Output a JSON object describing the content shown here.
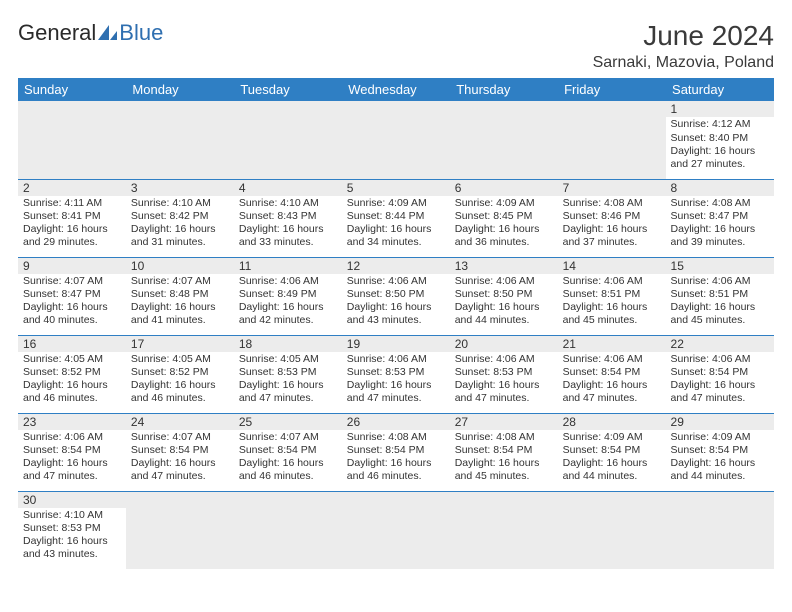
{
  "logo": {
    "text1": "General",
    "text2": "Blue"
  },
  "header": {
    "title": "June 2024",
    "location": "Sarnaki, Mazovia, Poland"
  },
  "colors": {
    "header_bg": "#2f7fc4",
    "header_text": "#ffffff",
    "daynum_bg": "#ececec",
    "border": "#2f7fc4",
    "logo_blue": "#2f6fb0",
    "text": "#333333"
  },
  "weekdays": [
    "Sunday",
    "Monday",
    "Tuesday",
    "Wednesday",
    "Thursday",
    "Friday",
    "Saturday"
  ],
  "weeks": [
    [
      null,
      null,
      null,
      null,
      null,
      null,
      {
        "n": "1",
        "sr": "Sunrise: 4:12 AM",
        "ss": "Sunset: 8:40 PM",
        "dl": "Daylight: 16 hours and 27 minutes."
      }
    ],
    [
      {
        "n": "2",
        "sr": "Sunrise: 4:11 AM",
        "ss": "Sunset: 8:41 PM",
        "dl": "Daylight: 16 hours and 29 minutes."
      },
      {
        "n": "3",
        "sr": "Sunrise: 4:10 AM",
        "ss": "Sunset: 8:42 PM",
        "dl": "Daylight: 16 hours and 31 minutes."
      },
      {
        "n": "4",
        "sr": "Sunrise: 4:10 AM",
        "ss": "Sunset: 8:43 PM",
        "dl": "Daylight: 16 hours and 33 minutes."
      },
      {
        "n": "5",
        "sr": "Sunrise: 4:09 AM",
        "ss": "Sunset: 8:44 PM",
        "dl": "Daylight: 16 hours and 34 minutes."
      },
      {
        "n": "6",
        "sr": "Sunrise: 4:09 AM",
        "ss": "Sunset: 8:45 PM",
        "dl": "Daylight: 16 hours and 36 minutes."
      },
      {
        "n": "7",
        "sr": "Sunrise: 4:08 AM",
        "ss": "Sunset: 8:46 PM",
        "dl": "Daylight: 16 hours and 37 minutes."
      },
      {
        "n": "8",
        "sr": "Sunrise: 4:08 AM",
        "ss": "Sunset: 8:47 PM",
        "dl": "Daylight: 16 hours and 39 minutes."
      }
    ],
    [
      {
        "n": "9",
        "sr": "Sunrise: 4:07 AM",
        "ss": "Sunset: 8:47 PM",
        "dl": "Daylight: 16 hours and 40 minutes."
      },
      {
        "n": "10",
        "sr": "Sunrise: 4:07 AM",
        "ss": "Sunset: 8:48 PM",
        "dl": "Daylight: 16 hours and 41 minutes."
      },
      {
        "n": "11",
        "sr": "Sunrise: 4:06 AM",
        "ss": "Sunset: 8:49 PM",
        "dl": "Daylight: 16 hours and 42 minutes."
      },
      {
        "n": "12",
        "sr": "Sunrise: 4:06 AM",
        "ss": "Sunset: 8:50 PM",
        "dl": "Daylight: 16 hours and 43 minutes."
      },
      {
        "n": "13",
        "sr": "Sunrise: 4:06 AM",
        "ss": "Sunset: 8:50 PM",
        "dl": "Daylight: 16 hours and 44 minutes."
      },
      {
        "n": "14",
        "sr": "Sunrise: 4:06 AM",
        "ss": "Sunset: 8:51 PM",
        "dl": "Daylight: 16 hours and 45 minutes."
      },
      {
        "n": "15",
        "sr": "Sunrise: 4:06 AM",
        "ss": "Sunset: 8:51 PM",
        "dl": "Daylight: 16 hours and 45 minutes."
      }
    ],
    [
      {
        "n": "16",
        "sr": "Sunrise: 4:05 AM",
        "ss": "Sunset: 8:52 PM",
        "dl": "Daylight: 16 hours and 46 minutes."
      },
      {
        "n": "17",
        "sr": "Sunrise: 4:05 AM",
        "ss": "Sunset: 8:52 PM",
        "dl": "Daylight: 16 hours and 46 minutes."
      },
      {
        "n": "18",
        "sr": "Sunrise: 4:05 AM",
        "ss": "Sunset: 8:53 PM",
        "dl": "Daylight: 16 hours and 47 minutes."
      },
      {
        "n": "19",
        "sr": "Sunrise: 4:06 AM",
        "ss": "Sunset: 8:53 PM",
        "dl": "Daylight: 16 hours and 47 minutes."
      },
      {
        "n": "20",
        "sr": "Sunrise: 4:06 AM",
        "ss": "Sunset: 8:53 PM",
        "dl": "Daylight: 16 hours and 47 minutes."
      },
      {
        "n": "21",
        "sr": "Sunrise: 4:06 AM",
        "ss": "Sunset: 8:54 PM",
        "dl": "Daylight: 16 hours and 47 minutes."
      },
      {
        "n": "22",
        "sr": "Sunrise: 4:06 AM",
        "ss": "Sunset: 8:54 PM",
        "dl": "Daylight: 16 hours and 47 minutes."
      }
    ],
    [
      {
        "n": "23",
        "sr": "Sunrise: 4:06 AM",
        "ss": "Sunset: 8:54 PM",
        "dl": "Daylight: 16 hours and 47 minutes."
      },
      {
        "n": "24",
        "sr": "Sunrise: 4:07 AM",
        "ss": "Sunset: 8:54 PM",
        "dl": "Daylight: 16 hours and 47 minutes."
      },
      {
        "n": "25",
        "sr": "Sunrise: 4:07 AM",
        "ss": "Sunset: 8:54 PM",
        "dl": "Daylight: 16 hours and 46 minutes."
      },
      {
        "n": "26",
        "sr": "Sunrise: 4:08 AM",
        "ss": "Sunset: 8:54 PM",
        "dl": "Daylight: 16 hours and 46 minutes."
      },
      {
        "n": "27",
        "sr": "Sunrise: 4:08 AM",
        "ss": "Sunset: 8:54 PM",
        "dl": "Daylight: 16 hours and 45 minutes."
      },
      {
        "n": "28",
        "sr": "Sunrise: 4:09 AM",
        "ss": "Sunset: 8:54 PM",
        "dl": "Daylight: 16 hours and 44 minutes."
      },
      {
        "n": "29",
        "sr": "Sunrise: 4:09 AM",
        "ss": "Sunset: 8:54 PM",
        "dl": "Daylight: 16 hours and 44 minutes."
      }
    ],
    [
      {
        "n": "30",
        "sr": "Sunrise: 4:10 AM",
        "ss": "Sunset: 8:53 PM",
        "dl": "Daylight: 16 hours and 43 minutes."
      },
      null,
      null,
      null,
      null,
      null,
      null
    ]
  ]
}
